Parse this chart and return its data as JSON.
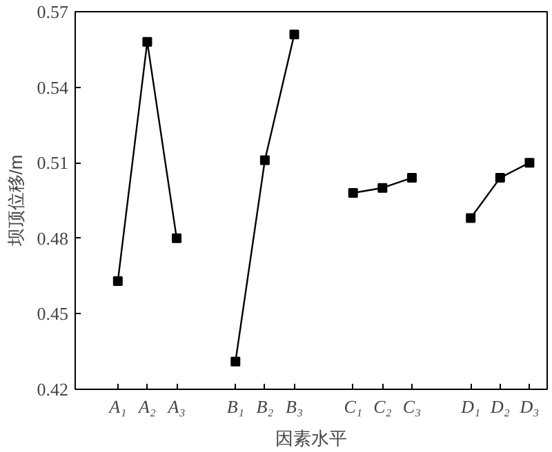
{
  "chart_data": {
    "type": "line",
    "xlabel": "因素水平",
    "ylabel": "坝顶位移/m",
    "categories": [
      "A₁",
      "A₂",
      "A₃",
      null,
      "B₁",
      "B₂",
      "B₃",
      null,
      "C₁",
      "C₂",
      "C₃",
      null,
      "D₁",
      "D₂",
      "D₃"
    ],
    "series": [
      {
        "color": "#000000",
        "values": [
          0.463,
          0.558,
          0.48,
          null,
          null,
          null,
          null,
          null,
          null,
          null,
          null,
          null,
          null,
          null,
          null
        ]
      },
      {
        "color": "#000000",
        "values": [
          null,
          null,
          null,
          null,
          0.431,
          0.511,
          0.561,
          null,
          null,
          null,
          null,
          null,
          null,
          null,
          null
        ]
      },
      {
        "color": "#000000",
        "values": [
          null,
          null,
          null,
          null,
          null,
          null,
          null,
          null,
          0.498,
          0.5,
          0.504,
          null,
          null,
          null,
          null
        ]
      },
      {
        "color": "#000000",
        "values": [
          null,
          null,
          null,
          null,
          null,
          null,
          null,
          null,
          null,
          null,
          null,
          null,
          0.488,
          0.504,
          0.51
        ]
      }
    ],
    "ylim": [
      0.42,
      0.57
    ],
    "yticks": [
      0.42,
      0.45,
      0.48,
      0.51,
      0.54,
      0.57
    ],
    "grid": false,
    "marker": "square",
    "line_style": "solid"
  }
}
